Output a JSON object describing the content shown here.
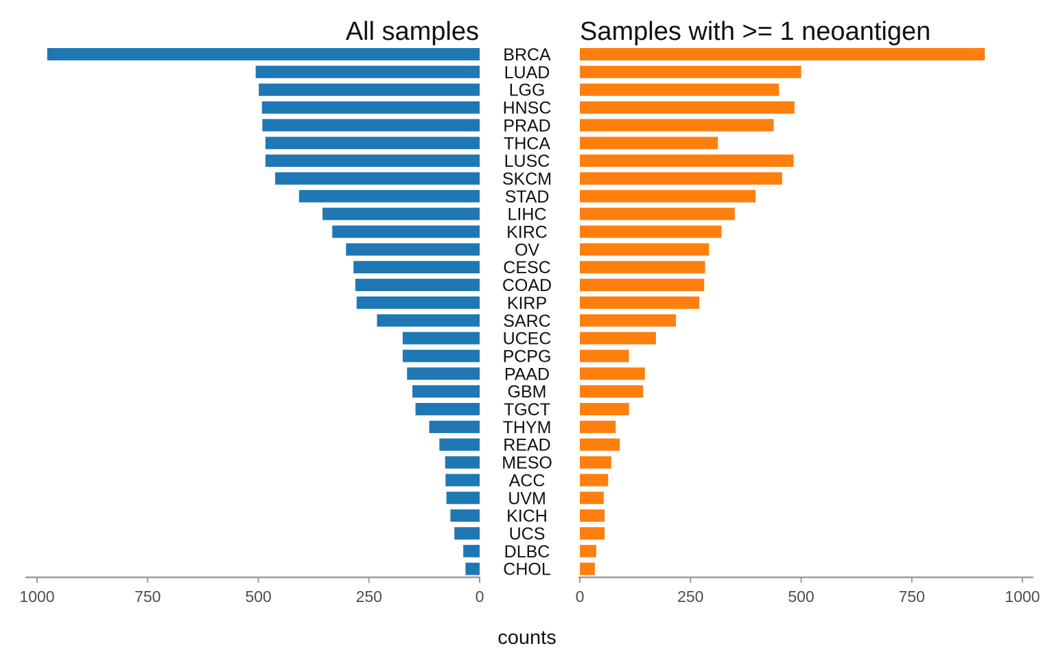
{
  "chart_data": {
    "type": "bar",
    "orientation": "horizontal",
    "layout": "back-to-back",
    "xlabel": "counts",
    "xlim": [
      0,
      1000
    ],
    "ticks": [
      0,
      250,
      500,
      750,
      1000
    ],
    "grid": false,
    "categories": [
      "BRCA",
      "LUAD",
      "LGG",
      "HNSC",
      "PRAD",
      "THCA",
      "LUSC",
      "SKCM",
      "STAD",
      "LIHC",
      "KIRC",
      "OV",
      "CESC",
      "COAD",
      "KIRP",
      "SARC",
      "UCEC",
      "PCPG",
      "PAAD",
      "GBM",
      "TGCT",
      "THYM",
      "READ",
      "MESO",
      "ACC",
      "UVM",
      "KICH",
      "UCS",
      "DLBC",
      "CHOL"
    ],
    "series": [
      {
        "name": "All samples",
        "color": "#1f77b4",
        "side": "left",
        "values": [
          977,
          506,
          499,
          492,
          491,
          484,
          484,
          462,
          408,
          355,
          333,
          302,
          285,
          281,
          278,
          232,
          174,
          174,
          164,
          152,
          145,
          114,
          91,
          78,
          77,
          75,
          66,
          57,
          37,
          32
        ]
      },
      {
        "name": "Samples with >= 1 neoantigen",
        "color": "#ff7f0e",
        "side": "right",
        "values": [
          915,
          500,
          450,
          485,
          438,
          312,
          483,
          457,
          397,
          350,
          320,
          292,
          283,
          281,
          270,
          217,
          172,
          111,
          147,
          143,
          111,
          81,
          90,
          71,
          64,
          54,
          56,
          56,
          37,
          34
        ]
      }
    ]
  }
}
